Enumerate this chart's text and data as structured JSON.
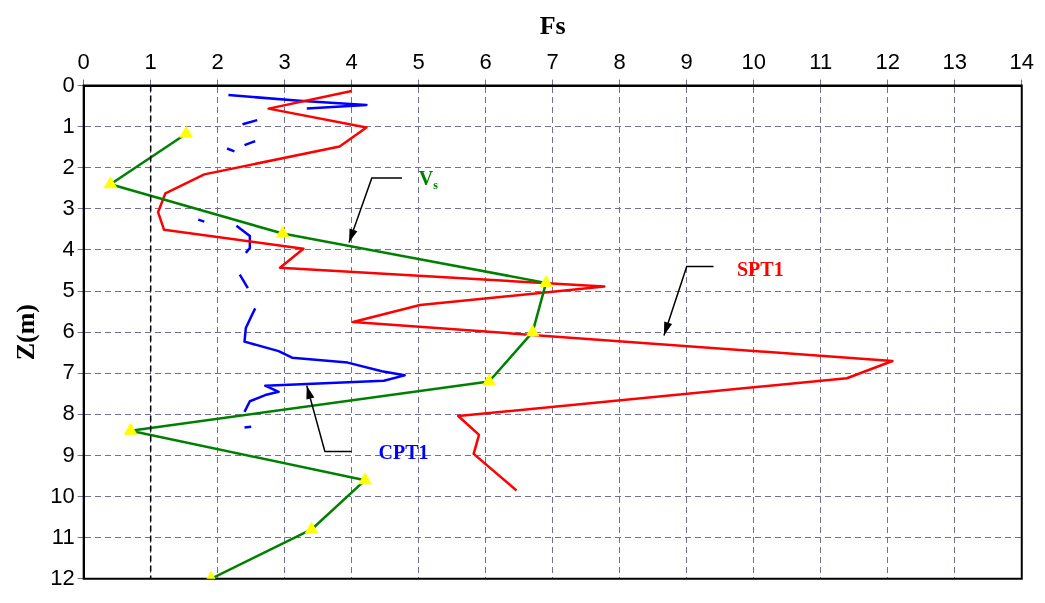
{
  "chart_data": {
    "type": "line",
    "xlabel": "Fs",
    "ylabel": "Z(m)",
    "xlim": [
      0,
      14
    ],
    "xticks": [
      0,
      1,
      2,
      3,
      4,
      5,
      6,
      7,
      8,
      9,
      10,
      11,
      12,
      13,
      14
    ],
    "ylim": [
      12,
      0
    ],
    "yticks": [
      0,
      1,
      2,
      3,
      4,
      5,
      6,
      7,
      8,
      9,
      10,
      11,
      12
    ],
    "grid": true,
    "legend": false,
    "ref_lines": [
      {
        "axis": "x",
        "value": 1,
        "color": "#000000",
        "line_style": "dashed"
      }
    ],
    "series": [
      {
        "name": "V$_{s}$",
        "color": "#008000",
        "marker": "triangle",
        "x": [
          1.53,
          0.4,
          2.97,
          6.9,
          6.7,
          6.05,
          0.7,
          4.2,
          3.4,
          1.9
        ],
        "values": [
          1.17,
          2.4,
          3.6,
          4.8,
          6.0,
          7.2,
          8.4,
          9.6,
          10.8,
          12.0
        ]
      },
      {
        "name": "SPT1",
        "color": "#ff0000",
        "marker": "none",
        "x": [
          4.0,
          2.76,
          4.22,
          3.82,
          1.8,
          1.22,
          1.11,
          1.2,
          3.28,
          2.93,
          7.77,
          5.02,
          4.02,
          12.07,
          11.39,
          5.59,
          5.9,
          5.82,
          6.46
        ],
        "values": [
          0.13,
          0.56,
          1.02,
          1.48,
          2.16,
          2.62,
          3.08,
          3.51,
          3.97,
          4.43,
          4.89,
          5.34,
          5.75,
          6.7,
          7.12,
          8.04,
          8.5,
          8.96,
          9.85
        ]
      },
      {
        "name": "CPT1",
        "color": "#0000ff",
        "marker": "none",
        "x": [
          2.16,
          3.22,
          4.22,
          3.33,
          null,
          2.37,
          2.59,
          null,
          2.14,
          2.25,
          null,
          2.4,
          2.56,
          null,
          1.71,
          1.8,
          null,
          2.28,
          2.48,
          2.48,
          2.42,
          null,
          2.33,
          2.45,
          null,
          2.56,
          2.5,
          2.42,
          2.4,
          2.91,
          3.11,
          3.94,
          4.45,
          4.79,
          4.48,
          2.71,
          2.91,
          2.71,
          2.48,
          2.4,
          null,
          2.4,
          2.5
        ],
        "values": [
          0.23,
          0.37,
          0.47,
          0.56,
          null,
          0.94,
          0.84,
          null,
          1.53,
          1.6,
          null,
          1.45,
          1.35,
          null,
          3.26,
          3.31,
          null,
          3.41,
          3.66,
          3.95,
          4.07,
          null,
          4.6,
          4.93,
          null,
          5.42,
          5.62,
          5.9,
          6.23,
          6.46,
          6.62,
          6.74,
          6.95,
          7.05,
          7.18,
          7.3,
          7.45,
          7.53,
          7.68,
          7.94,
          null,
          8.32,
          8.3
        ]
      }
    ]
  }
}
